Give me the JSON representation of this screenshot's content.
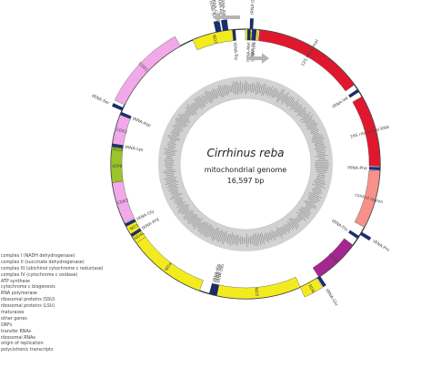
{
  "genome": {
    "species": "Cirrhinus reba",
    "description": "mitochondrial genome",
    "length_text": "16,597 bp"
  },
  "colors": {
    "nd": "#f2ec1f",
    "cox": "#f2a9e9",
    "atp": "#9cc32b",
    "cytb": "#a3278f",
    "rrna": "#e0182d",
    "trna": "#1b2e6b",
    "control": "#f7918a"
  },
  "features": [
    {
      "name": "ND1",
      "start": 0.0,
      "end": 5.5,
      "strand": "inner",
      "type": "nd"
    },
    {
      "name": "ND2",
      "start": 337,
      "end": 355.5,
      "strand": "inner",
      "type": "nd"
    },
    {
      "name": "COX1",
      "start": 296,
      "end": 331,
      "strand": "outer",
      "type": "cox"
    },
    {
      "name": "COX2",
      "start": 278,
      "end": 292,
      "strand": "inner",
      "type": "cox"
    },
    {
      "name": "ATP8",
      "start": 276,
      "end": 278,
      "strand": "inner",
      "type": "atp"
    },
    {
      "name": "ATP6",
      "start": 262,
      "end": 276,
      "strand": "inner",
      "type": "atp"
    },
    {
      "name": "COX3",
      "start": 244,
      "end": 262,
      "strand": "inner",
      "type": "cox"
    },
    {
      "name": "ND3",
      "start": 238,
      "end": 243,
      "strand": "inner",
      "type": "nd"
    },
    {
      "name": "ND4L",
      "start": 234,
      "end": 238,
      "strand": "inner",
      "type": "nd"
    },
    {
      "name": "ND4",
      "start": 200,
      "end": 234,
      "strand": "inner",
      "type": "nd"
    },
    {
      "name": "ND5",
      "start": 156,
      "end": 194,
      "strand": "inner",
      "type": "nd"
    },
    {
      "name": "ND6",
      "start": 148,
      "end": 156,
      "strand": "outer",
      "type": "nd"
    },
    {
      "name": "CYTB",
      "start": 127,
      "end": 147,
      "strand": "inner",
      "type": "cytb"
    },
    {
      "name": "12S ribosomal",
      "start": 6,
      "end": 54,
      "strand": "inner",
      "type": "rrna"
    },
    {
      "name": "16S ribosomal RNA",
      "start": 60,
      "end": 91,
      "strand": "inner",
      "type": "rrna"
    },
    {
      "name": "control region",
      "start": 93,
      "end": 118,
      "strand": "inner",
      "type": "control"
    }
  ],
  "trna": [
    {
      "name": "tRNA-Leu",
      "angle": 4,
      "strand": "inner"
    },
    {
      "name": "tRNA-Ile",
      "angle": 3.5,
      "strand": "inner"
    },
    {
      "name": "tRNA-Met",
      "angle": 1.5,
      "strand": "inner"
    },
    {
      "name": "tRNA-Gln",
      "angle": 2.5,
      "strand": "outer"
    },
    {
      "name": "tRNA-Trp",
      "angle": 355,
      "strand": "inner"
    },
    {
      "name": "tRNA-Ala",
      "angle": 352,
      "strand": "outer"
    },
    {
      "name": "tRNA-Asn",
      "angle": 351,
      "strand": "outer"
    },
    {
      "name": "tRNA-Cys",
      "angle": 349,
      "strand": "outer"
    },
    {
      "name": "tRNA-Tyr",
      "angle": 348,
      "strand": "outer"
    },
    {
      "name": "tRNA-Ser",
      "angle": 294,
      "strand": "outer"
    },
    {
      "name": "tRNA-Asp",
      "angle": 292,
      "strand": "inner"
    },
    {
      "name": "tRNA-Lys",
      "angle": 278,
      "strand": "inner"
    },
    {
      "name": "tRNA-Gly",
      "angle": 243,
      "strand": "inner"
    },
    {
      "name": "tRNA-Arg",
      "angle": 238,
      "strand": "inner"
    },
    {
      "name": "tRNA-His",
      "angle": 195,
      "strand": "inner"
    },
    {
      "name": "tRNA-Ser",
      "angle": 194,
      "strand": "inner"
    },
    {
      "name": "tRNA-Leu",
      "angle": 193,
      "strand": "inner"
    },
    {
      "name": "tRNA-Glu",
      "angle": 147,
      "strand": "outer"
    },
    {
      "name": "tRNA-Thr",
      "angle": 123,
      "strand": "inner"
    },
    {
      "name": "tRNA-Pro",
      "angle": 121,
      "strand": "outer"
    },
    {
      "name": "tRNA-Phe",
      "angle": 92,
      "strand": "inner"
    },
    {
      "name": "tRNA-Val",
      "angle": 57,
      "strand": "inner"
    }
  ],
  "legend": [
    {
      "label": "complex I (NADH dehydrogenase)",
      "color": "#f2ec1f"
    },
    {
      "label": "complex II (succinate dehydrogenase)",
      "color": "#cccccc"
    },
    {
      "label": "complex III (ubichinol cytochrome c reductase)",
      "color": "#a3278f"
    },
    {
      "label": "complex IV (cytochrome c oxidase)",
      "color": "#f2a9e9"
    },
    {
      "label": "ATP synthase",
      "color": "#9cc32b"
    },
    {
      "label": "cytochrome c biogenesis",
      "color": "#888888"
    },
    {
      "label": "RNA polymerase",
      "color": "#c85a2a"
    },
    {
      "label": "ribosomal proteins (SSU)",
      "color": "#f6c7a0"
    },
    {
      "label": "ribosomal proteins (LSU)",
      "color": "#a0b97a"
    },
    {
      "label": "maturases",
      "color": "#f5a623"
    },
    {
      "label": "other genes",
      "color": "#9b4f96"
    },
    {
      "label": "ORFs",
      "color": "#7fd3d6"
    },
    {
      "label": "transfer RNAs",
      "color": "#1b2e6b"
    },
    {
      "label": "ribosomal RNAs",
      "color": "#e0182d"
    },
    {
      "label": "origin of replication",
      "color": "#f7918a"
    },
    {
      "label": "polycistronic transcripts",
      "color": "#bbbbbb"
    }
  ]
}
